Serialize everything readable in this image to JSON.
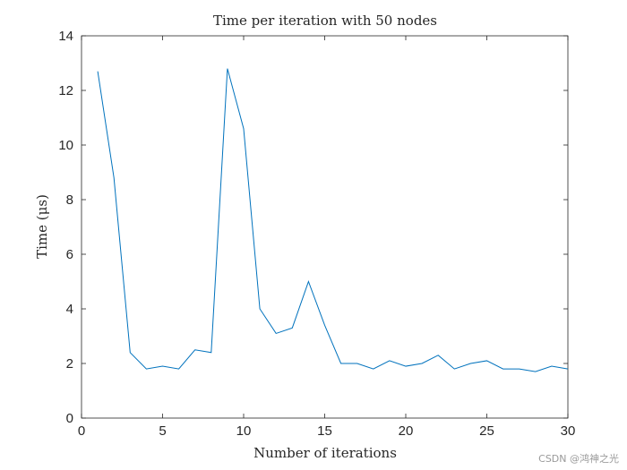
{
  "chart_data": {
    "type": "line",
    "title": "Time per iteration with 50 nodes",
    "xlabel": "Number of iterations",
    "ylabel": "Time (μs)",
    "xlim": [
      0,
      30
    ],
    "ylim": [
      0,
      14
    ],
    "xticks": [
      0,
      5,
      10,
      15,
      20,
      25,
      30
    ],
    "yticks": [
      0,
      2,
      4,
      6,
      8,
      10,
      12,
      14
    ],
    "grid": false,
    "series": [
      {
        "color": "#0072BD",
        "x": [
          1,
          2,
          3,
          4,
          5,
          6,
          7,
          8,
          9,
          10,
          11,
          12,
          13,
          14,
          15,
          16,
          17,
          18,
          19,
          20,
          21,
          22,
          23,
          24,
          25,
          26,
          27,
          28,
          29,
          30
        ],
        "y": [
          12.7,
          8.8,
          2.4,
          1.8,
          1.9,
          1.8,
          2.5,
          2.4,
          12.8,
          10.6,
          4.0,
          3.1,
          3.3,
          5.0,
          3.4,
          2.0,
          2.0,
          1.8,
          2.1,
          1.9,
          2.0,
          2.3,
          1.8,
          2.0,
          2.1,
          1.8,
          1.8,
          1.7,
          1.9,
          1.8
        ]
      }
    ]
  },
  "watermark": "CSDN @鸿神之光"
}
